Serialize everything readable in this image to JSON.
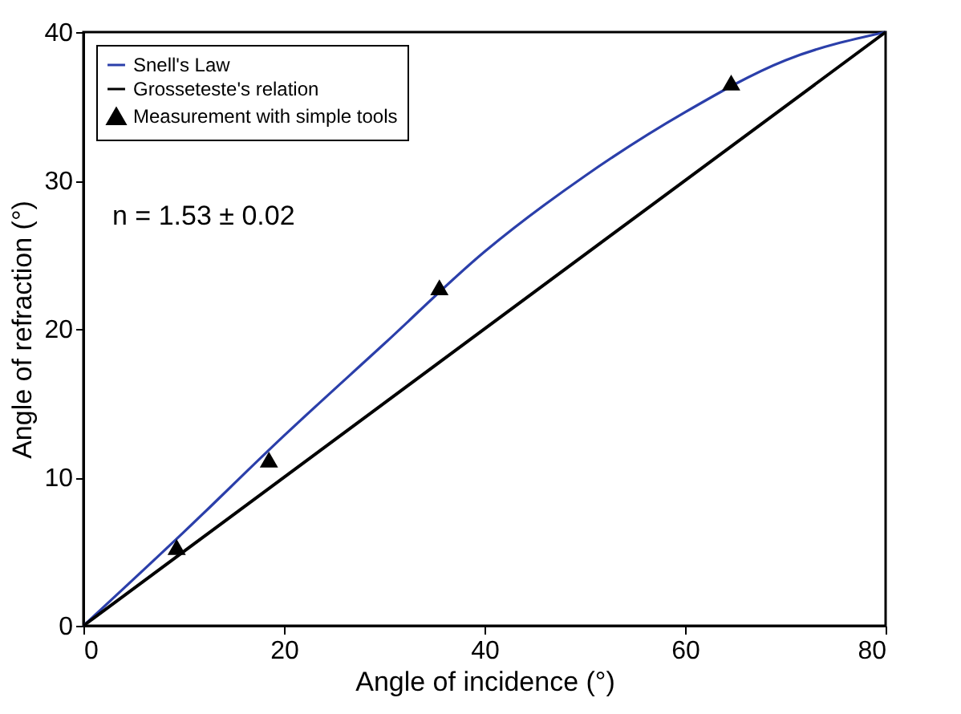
{
  "chart_data": {
    "type": "line",
    "xlabel": "Angle of incidence (°)",
    "ylabel": "Angle of refraction (°)",
    "xlim": [
      0,
      80
    ],
    "ylim": [
      0,
      40
    ],
    "xticks": [
      0,
      20,
      40,
      60,
      80
    ],
    "yticks": [
      0,
      10,
      20,
      30,
      40
    ],
    "grid": false,
    "legend": "top left",
    "annotations": [
      "n = 1.53 ± 0.02"
    ],
    "series": [
      {
        "name": "Snell's Law",
        "color": "#2b3faa",
        "x": [
          0,
          10,
          20,
          30,
          40,
          50,
          60,
          70,
          80
        ],
        "values": [
          0,
          6.3,
          12.8,
          19.0,
          25.2,
          30.3,
          34.6,
          38.1,
          40
        ]
      },
      {
        "name": "Grosseteste's relation",
        "color": "#000000",
        "x": [
          0,
          80
        ],
        "values": [
          0,
          40
        ]
      },
      {
        "name": "Measurement with simple tools",
        "type": "scatter",
        "marker": "triangle",
        "color": "#000000",
        "x": [
          9.3,
          18.5,
          35.5,
          64.6
        ],
        "values": [
          5.3,
          11.2,
          22.8,
          36.6
        ]
      }
    ]
  }
}
